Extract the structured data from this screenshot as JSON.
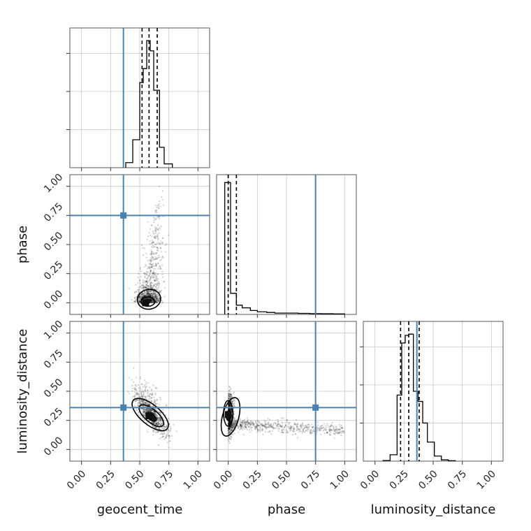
{
  "chart_data": {
    "type": "corner",
    "parameters": [
      "geocent_time",
      "phase",
      "luminosity_distance"
    ],
    "axis_labels": {
      "x": [
        "geocent_time",
        "phase",
        "luminosity_distance"
      ],
      "y": [
        "",
        "phase",
        "luminosity_distance"
      ]
    },
    "ticks": [
      0.0,
      0.25,
      0.5,
      0.75,
      1.0
    ],
    "tick_labels": [
      "0.00",
      "0.25",
      "0.50",
      "0.75",
      "1.00"
    ],
    "range": [
      -0.1,
      1.1
    ],
    "grid": true,
    "truths": {
      "geocent_time": 0.36,
      "phase": 0.75,
      "luminosity_distance": 0.36,
      "color": "#4682b4"
    },
    "quantiles": {
      "geocent_time": [
        0.52,
        0.58,
        0.65
      ],
      "phase": [
        0.0,
        0.0,
        0.07
      ],
      "luminosity_distance": [
        0.22,
        0.29,
        0.38
      ]
    },
    "histograms": {
      "geocent_time": {
        "edges": [
          0.38,
          0.44,
          0.5,
          0.53,
          0.56,
          0.59,
          0.62,
          0.67,
          0.71,
          0.78
        ],
        "counts": [
          0.04,
          0.22,
          0.67,
          0.78,
          1.0,
          0.92,
          0.61,
          0.16,
          0.03
        ],
        "ymax": 1.1,
        "y_ticks": [
          0.3,
          0.6,
          0.9
        ]
      },
      "phase": {
        "edges": [
          -0.03,
          0.02,
          0.07,
          0.12,
          0.19,
          0.25,
          0.33,
          0.4,
          0.5,
          0.6,
          0.7,
          0.8,
          0.9,
          1.0
        ],
        "counts": [
          1.0,
          0.16,
          0.07,
          0.05,
          0.03,
          0.02,
          0.015,
          0.01,
          0.01,
          0.008,
          0.006,
          0.005,
          0.004
        ],
        "ymax": 1.06
      },
      "luminosity_distance": {
        "edges": [
          0.07,
          0.13,
          0.19,
          0.23,
          0.26,
          0.29,
          0.33,
          0.37,
          0.41,
          0.45,
          0.51,
          0.57,
          0.63,
          0.69
        ],
        "counts": [
          0.005,
          0.05,
          0.52,
          0.93,
          0.99,
          1.0,
          0.55,
          0.47,
          0.3,
          0.15,
          0.04,
          0.01,
          0.003
        ],
        "ymax": 1.1,
        "y_ticks": [
          0.3,
          0.6,
          0.9
        ]
      }
    },
    "joint": {
      "phase_vs_geocent_time": {
        "x": "geocent_time",
        "y": "phase",
        "peak": [
          0.55,
          0.0
        ],
        "contours": [
          {
            "cx": 0.56,
            "cy": 0.0,
            "rx": 0.02,
            "ry": 0.012,
            "rot": 0
          },
          {
            "cx": 0.57,
            "cy": 0.01,
            "rx": 0.06,
            "ry": 0.04,
            "rot": 0
          },
          {
            "cx": 0.58,
            "cy": 0.03,
            "rx": 0.1,
            "ry": 0.085,
            "rot": 10
          }
        ]
      },
      "luminosity_distance_vs_geocent_time": {
        "x": "geocent_time",
        "y": "luminosity_distance",
        "peak": [
          0.58,
          0.29
        ],
        "contours": [
          {
            "cx": 0.6,
            "cy": 0.28,
            "rx": 0.05,
            "ry": 0.025,
            "rot": -40
          },
          {
            "cx": 0.6,
            "cy": 0.29,
            "rx": 0.13,
            "ry": 0.055,
            "rot": -40
          },
          {
            "cx": 0.59,
            "cy": 0.3,
            "rx": 0.19,
            "ry": 0.085,
            "rot": -40
          }
        ]
      },
      "luminosity_distance_vs_phase": {
        "x": "phase",
        "y": "luminosity_distance",
        "peak": [
          0.0,
          0.3
        ],
        "contours": [
          {
            "cx": 0.0,
            "cy": 0.29,
            "rx": 0.018,
            "ry": 0.04,
            "rot": 0
          },
          {
            "cx": 0.0,
            "cy": 0.31,
            "rx": 0.04,
            "ry": 0.11,
            "rot": 0
          },
          {
            "cx": 0.02,
            "cy": 0.28,
            "rx": 0.07,
            "ry": 0.17,
            "rot": -15
          }
        ]
      }
    }
  }
}
